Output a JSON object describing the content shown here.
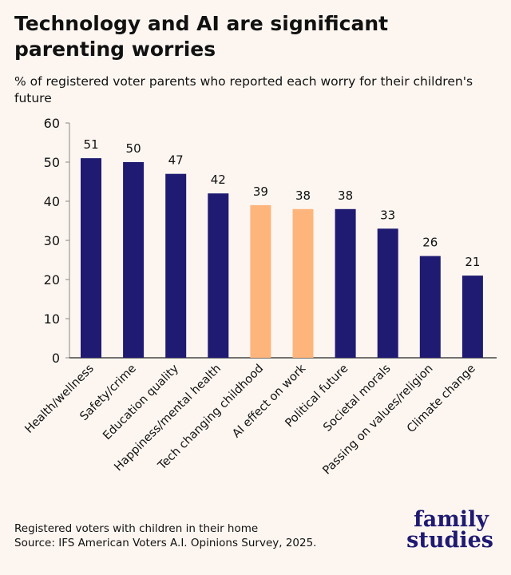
{
  "title": "Technology and AI are significant parenting worries",
  "subtitle": "% of registered voter parents who reported each worry for their children's future",
  "chart_data": {
    "type": "bar",
    "categories": [
      "Health/wellness",
      "Safety/crime",
      "Education quality",
      "Happiness/mental health",
      "Tech changing childhood",
      "AI effect on work",
      "Political future",
      "Societal morals",
      "Passing on values/religion",
      "Climate change"
    ],
    "values": [
      51,
      50,
      47,
      42,
      39,
      38,
      38,
      33,
      26,
      21
    ],
    "highlighted": [
      false,
      false,
      false,
      false,
      true,
      true,
      false,
      false,
      false,
      false
    ],
    "ylim": [
      0,
      60
    ],
    "yticks": [
      0,
      10,
      20,
      30,
      40,
      50,
      60
    ],
    "grid": false,
    "colors": {
      "default": "#1f1a72",
      "highlight": "#fdb57c",
      "background": "#fdf6f0"
    }
  },
  "notes": [
    "Registered voters with children in their home",
    "Source: IFS American Voters A.I. Opinions Survey, 2025."
  ],
  "logo": [
    "family",
    "studies"
  ]
}
